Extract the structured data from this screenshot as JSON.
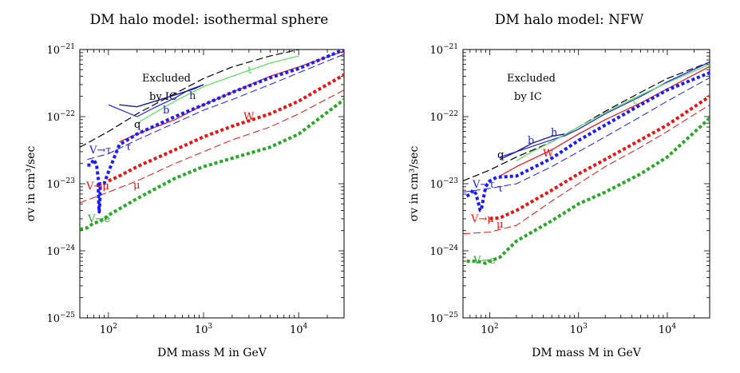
{
  "colors": {
    "black": "#000000",
    "blue": "#1a1aff",
    "red": "#ee1111",
    "green": "#22aa22",
    "lightgreen": "#55dd55",
    "navy": "#1a1a99"
  },
  "chart_data": [
    {
      "type": "line",
      "title": "DM halo model: isothermal sphere",
      "xlabel": "DM mass M in GeV",
      "ylabel": "σv in cm³/sec",
      "xscale": "log",
      "yscale": "log",
      "xlim": [
        50,
        30000
      ],
      "ylim": [
        1e-25,
        1e-21
      ],
      "xticks": [
        {
          "v": 100,
          "base": "10",
          "exp": "2"
        },
        {
          "v": 1000,
          "base": "10",
          "exp": "3"
        },
        {
          "v": 10000,
          "base": "10",
          "exp": "4"
        }
      ],
      "yticks": [
        {
          "v": 1e-25,
          "base": "10",
          "exp": "−25"
        },
        {
          "v": 1e-24,
          "base": "10",
          "exp": "−24"
        },
        {
          "v": 1e-23,
          "base": "10",
          "exp": "−23"
        },
        {
          "v": 1e-22,
          "base": "10",
          "exp": "−22"
        },
        {
          "v": 1e-21,
          "base": "10",
          "exp": "−21"
        }
      ],
      "annotation": [
        "Excluded",
        "by IC"
      ],
      "series": [
        {
          "key": "q",
          "label": "q",
          "color": "black",
          "style": "dashed",
          "width": 1.2,
          "x": [
            50,
            100,
            200,
            500,
            1000,
            2000,
            5000,
            10000,
            30000
          ],
          "y": [
            3.5e-23,
            6e-23,
            1.1e-22,
            2.2e-22,
            3.7e-22,
            5.5e-22,
            8e-22,
            1e-21,
            1.2e-21
          ]
        },
        {
          "key": "b",
          "label": "b",
          "color": "blue",
          "style": "solid",
          "width": 1.2,
          "x": [
            100,
            200,
            300,
            500,
            700,
            1000
          ],
          "y": [
            1.5e-22,
            1e-22,
            1.35e-22,
            1.9e-22,
            2.5e-22,
            3e-22
          ]
        },
        {
          "key": "h",
          "label": "h",
          "color": "navy",
          "style": "solid",
          "width": 1.4,
          "x": [
            130,
            200,
            500,
            800,
            1000
          ],
          "y": [
            1.5e-22,
            1.4e-22,
            2.1e-22,
            2.6e-22,
            3e-22
          ]
        },
        {
          "key": "t",
          "label": "t",
          "color": "lightgreen",
          "style": "solid",
          "width": 1.2,
          "x": [
            200,
            500,
            1000,
            2000,
            5000,
            10000
          ],
          "y": [
            8e-23,
            1.7e-22,
            2.8e-22,
            4e-22,
            6.3e-22,
            8e-22
          ]
        },
        {
          "key": "W",
          "label": "W",
          "color": "red",
          "style": "solid",
          "width": 1.2,
          "x": [
            130,
            200,
            500,
            1000,
            2000,
            5000,
            10000,
            30000
          ],
          "y": [
            4.2e-23,
            5.5e-23,
            9e-23,
            1.5e-22,
            2.3e-22,
            4e-22,
            5.5e-22,
            9.5e-22
          ]
        },
        {
          "key": "Vtau",
          "label": "V→τ",
          "color": "blue",
          "style": "dotted",
          "width": 4,
          "x": [
            60,
            65,
            70,
            75,
            78,
            80,
            82,
            85,
            90,
            100,
            130,
            200,
            500,
            1000,
            2000,
            5000,
            10000,
            30000
          ],
          "y": [
            1.9e-23,
            1.9e-23,
            2.3e-23,
            1.9e-23,
            1.2e-23,
            1e-23,
            1e-23,
            1e-23,
            1e-23,
            1.5e-23,
            3.8e-23,
            5.5e-23,
            1e-22,
            1.5e-22,
            2.3e-22,
            3.8e-22,
            5.2e-22,
            1e-21
          ]
        },
        {
          "key": "tau",
          "label": "τ",
          "color": "blue",
          "style": "dashed",
          "width": 1,
          "x": [
            60,
            100,
            200,
            500,
            1000,
            2000,
            5000,
            10000,
            30000
          ],
          "y": [
            2.3e-23,
            2.8e-23,
            4.5e-23,
            8e-23,
            1.25e-22,
            1.8e-22,
            3e-22,
            4.5e-22,
            8.5e-22
          ]
        },
        {
          "key": "Vmu",
          "label": "V→μ",
          "color": "red",
          "style": "dotted",
          "width": 4,
          "x": [
            100,
            130,
            200,
            500,
            1000,
            2000,
            5000,
            10000,
            30000
          ],
          "y": [
            1.1e-23,
            1.3e-23,
            1.8e-23,
            3.2e-23,
            5e-23,
            7.2e-23,
            1.1e-22,
            1.7e-22,
            4.2e-22
          ]
        },
        {
          "key": "mu",
          "label": "μ",
          "color": "red",
          "style": "dashed",
          "width": 1,
          "x": [
            50,
            100,
            200,
            500,
            1000,
            2000,
            5000,
            10000,
            30000
          ],
          "y": [
            5.2e-24,
            7.5e-24,
            1.1e-23,
            2e-23,
            3e-23,
            4.5e-23,
            7e-23,
            1.1e-22,
            2.5e-22
          ]
        },
        {
          "key": "Ve",
          "label": "V→e",
          "color": "green",
          "style": "dotted",
          "width": 4,
          "x": [
            50,
            60,
            70,
            80,
            90,
            100,
            200,
            500,
            1000,
            2000,
            5000,
            10000,
            30000
          ],
          "y": [
            2.1e-24,
            2.2e-24,
            2.6e-24,
            2.7e-24,
            3e-24,
            3.4e-24,
            6e-24,
            1.2e-23,
            1.8e-23,
            2.4e-23,
            3.5e-23,
            5.5e-23,
            1.8e-22
          ]
        },
        {
          "key": "Vtau-dip",
          "label": "",
          "color": "blue",
          "style": "dotted",
          "width": 4,
          "x": [
            78,
            79,
            80,
            81,
            82
          ],
          "y": [
            1e-23,
            5e-24,
            3.8e-24,
            5e-24,
            1e-23
          ]
        }
      ]
    },
    {
      "type": "line",
      "title": "DM halo model: NFW",
      "xlabel": "DM mass M in GeV",
      "ylabel": "σv in cm³/sec",
      "xscale": "log",
      "yscale": "log",
      "xlim": [
        50,
        30000
      ],
      "ylim": [
        1e-25,
        1e-21
      ],
      "xticks": [
        {
          "v": 100,
          "base": "10",
          "exp": "2"
        },
        {
          "v": 1000,
          "base": "10",
          "exp": "3"
        },
        {
          "v": 10000,
          "base": "10",
          "exp": "4"
        }
      ],
      "yticks": [
        {
          "v": 1e-25,
          "base": "10",
          "exp": "−25"
        },
        {
          "v": 1e-24,
          "base": "10",
          "exp": "−24"
        },
        {
          "v": 1e-23,
          "base": "10",
          "exp": "−23"
        },
        {
          "v": 1e-22,
          "base": "10",
          "exp": "−22"
        },
        {
          "v": 1e-21,
          "base": "10",
          "exp": "−21"
        }
      ],
      "annotation": [
        "Excluded",
        "by IC"
      ],
      "series": [
        {
          "key": "q",
          "label": "q",
          "color": "black",
          "style": "dashed",
          "width": 1.2,
          "x": [
            50,
            100,
            200,
            500,
            1000,
            2000,
            5000,
            10000,
            30000
          ],
          "y": [
            1.1e-23,
            1.6e-23,
            2.5e-23,
            4.2e-23,
            7e-23,
            1.2e-22,
            2.3e-22,
            3.7e-22,
            6.5e-22
          ]
        },
        {
          "key": "b",
          "label": "b",
          "color": "blue",
          "style": "solid",
          "width": 1.2,
          "x": [
            130,
            200,
            300,
            500,
            700,
            1000,
            2000,
            5000,
            10000,
            30000
          ],
          "y": [
            2.5e-23,
            3e-23,
            3.6e-23,
            4.5e-23,
            5.2e-23,
            6.5e-23,
            1.1e-22,
            2e-22,
            3.3e-22,
            6.5e-22
          ]
        },
        {
          "key": "h",
          "label": "h",
          "color": "navy",
          "style": "solid",
          "width": 1.4,
          "x": [
            130,
            200,
            300,
            500,
            700
          ],
          "y": [
            2.3e-23,
            3e-23,
            4e-23,
            5.1e-23,
            5.5e-23
          ]
        },
        {
          "key": "t",
          "label": "t",
          "color": "lightgreen",
          "style": "solid",
          "width": 1.2,
          "x": [
            200,
            300,
            500,
            1000,
            2000,
            5000,
            10000,
            30000
          ],
          "y": [
            2.2e-23,
            3e-23,
            4.2e-23,
            7e-23,
            1.15e-22,
            2.1e-22,
            3.2e-22,
            6e-22
          ]
        },
        {
          "key": "W",
          "label": "W",
          "color": "red",
          "style": "solid",
          "width": 1.2,
          "x": [
            130,
            200,
            500,
            1000,
            2000,
            5000,
            10000,
            30000
          ],
          "y": [
            1.3e-23,
            1.8e-23,
            3.2e-23,
            5.5e-23,
            9e-23,
            1.6e-22,
            2.6e-22,
            5.6e-22
          ]
        },
        {
          "key": "Vtau",
          "label": "V→τ",
          "color": "blue",
          "style": "dotted",
          "width": 4,
          "x": [
            55,
            60,
            65,
            70,
            75,
            78,
            80,
            90,
            100,
            120,
            200,
            500,
            1000,
            2000,
            5000,
            10000,
            30000
          ],
          "y": [
            6.5e-24,
            7e-24,
            8e-24,
            7e-24,
            5e-24,
            4e-24,
            4e-24,
            9e-24,
            1.1e-23,
            1.25e-23,
            1.3e-23,
            2.4e-23,
            4.4e-23,
            7.5e-23,
            1.5e-22,
            2.5e-22,
            4.5e-22
          ]
        },
        {
          "key": "tau",
          "label": "τ",
          "color": "blue",
          "style": "dashed",
          "width": 1,
          "x": [
            50,
            100,
            200,
            500,
            1000,
            2000,
            5000,
            10000,
            30000
          ],
          "y": [
            7.5e-24,
            8.5e-24,
            1e-23,
            1.8e-23,
            3e-23,
            5e-23,
            1e-22,
            1.7e-22,
            3.8e-22
          ]
        },
        {
          "key": "Vmu",
          "label": "V→μ",
          "color": "red",
          "style": "dotted",
          "width": 4,
          "x": [
            100,
            130,
            200,
            500,
            1000,
            2000,
            5000,
            10000,
            30000
          ],
          "y": [
            3e-24,
            3.1e-24,
            4e-24,
            8e-24,
            1.4e-23,
            2.3e-23,
            4.5e-23,
            7.5e-23,
            2e-22
          ]
        },
        {
          "key": "mu",
          "label": "μ",
          "color": "red",
          "style": "dashed",
          "width": 1,
          "x": [
            50,
            100,
            200,
            500,
            1000,
            2000,
            5000,
            10000,
            30000
          ],
          "y": [
            1.8e-24,
            1.9e-24,
            2.4e-24,
            5.5e-24,
            1e-23,
            1.8e-23,
            3.5e-23,
            6e-23,
            1.5e-22
          ]
        },
        {
          "key": "Ve",
          "label": "V→e",
          "color": "green",
          "style": "dotted",
          "width": 4,
          "x": [
            55,
            70,
            80,
            90,
            100,
            130,
            200,
            500,
            1000,
            2000,
            5000,
            10000,
            30000
          ],
          "y": [
            7e-25,
            7e-25,
            6.8e-25,
            6.5e-25,
            7e-25,
            8e-25,
            1.4e-24,
            2.8e-24,
            5e-24,
            7.5e-24,
            1.4e-23,
            2.5e-23,
            9.5e-23
          ]
        }
      ]
    }
  ]
}
